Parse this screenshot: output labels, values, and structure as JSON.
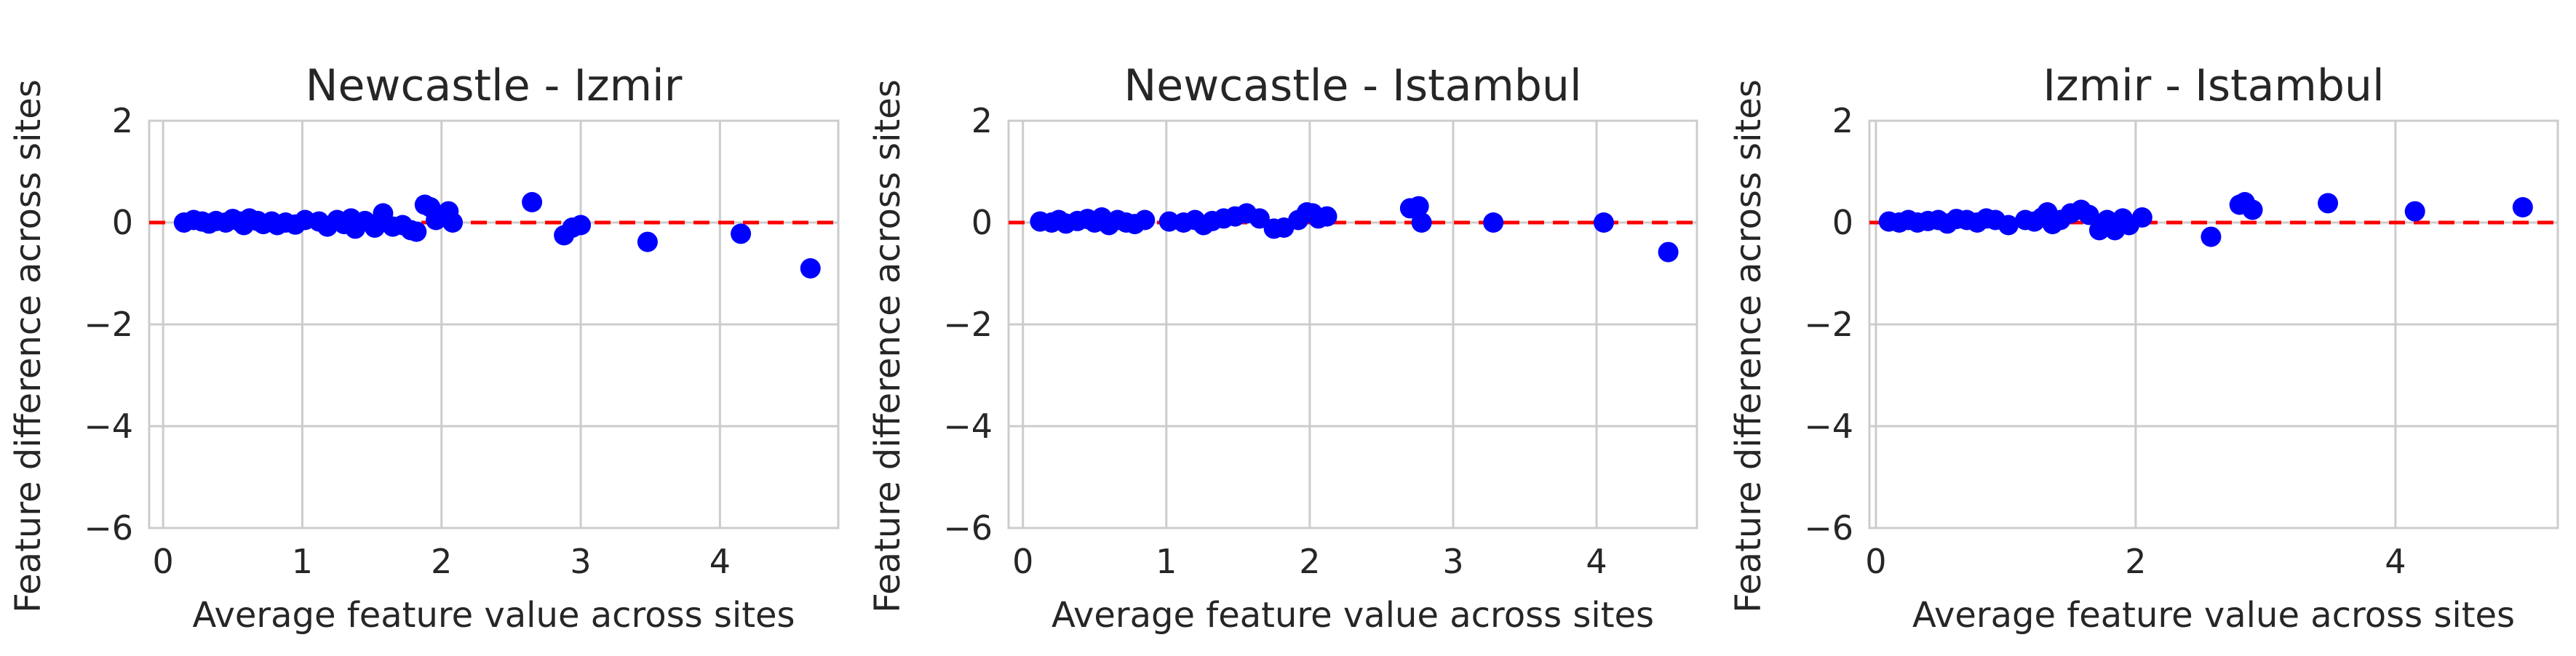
{
  "chart_data": [
    {
      "type": "scatter",
      "title": "Newcastle - Izmir",
      "xlabel": "Average feature value across sites",
      "ylabel": "Feature difference across sites",
      "xlim": [
        -0.1,
        4.85
      ],
      "ylim": [
        -6,
        2
      ],
      "xticks": [
        0,
        1,
        2,
        3,
        4
      ],
      "yticks": [
        -6,
        -4,
        -2,
        0,
        2
      ],
      "grid": true,
      "reference_line": {
        "y": 0,
        "style": "dashed",
        "color": "#ff0000"
      },
      "marker_color": "#0000ff",
      "points": [
        [
          0.15,
          0.0
        ],
        [
          0.22,
          0.05
        ],
        [
          0.28,
          0.02
        ],
        [
          0.33,
          -0.02
        ],
        [
          0.38,
          0.03
        ],
        [
          0.45,
          0.0
        ],
        [
          0.5,
          0.07
        ],
        [
          0.55,
          0.02
        ],
        [
          0.58,
          -0.05
        ],
        [
          0.62,
          0.08
        ],
        [
          0.68,
          0.03
        ],
        [
          0.72,
          -0.03
        ],
        [
          0.78,
          0.02
        ],
        [
          0.82,
          -0.05
        ],
        [
          0.88,
          0.0
        ],
        [
          0.95,
          -0.04
        ],
        [
          1.02,
          0.05
        ],
        [
          1.12,
          0.02
        ],
        [
          1.18,
          -0.08
        ],
        [
          1.25,
          0.05
        ],
        [
          1.3,
          -0.03
        ],
        [
          1.35,
          0.08
        ],
        [
          1.38,
          -0.12
        ],
        [
          1.45,
          0.03
        ],
        [
          1.52,
          -0.1
        ],
        [
          1.58,
          0.18
        ],
        [
          1.65,
          -0.08
        ],
        [
          1.72,
          -0.05
        ],
        [
          1.78,
          -0.15
        ],
        [
          1.82,
          -0.18
        ],
        [
          1.88,
          0.35
        ],
        [
          1.92,
          0.3
        ],
        [
          1.96,
          0.05
        ],
        [
          2.05,
          0.22
        ],
        [
          2.08,
          0.0
        ],
        [
          2.65,
          0.4
        ],
        [
          2.88,
          -0.25
        ],
        [
          2.94,
          -0.1
        ],
        [
          3.0,
          -0.05
        ],
        [
          3.48,
          -0.38
        ],
        [
          4.15,
          -0.22
        ],
        [
          4.65,
          -0.9
        ]
      ]
    },
    {
      "type": "scatter",
      "title": "Newcastle - Istambul",
      "xlabel": "Average feature value across sites",
      "ylabel": "Feature difference across sites",
      "xlim": [
        -0.1,
        4.7
      ],
      "ylim": [
        -6,
        2
      ],
      "xticks": [
        0,
        1,
        2,
        3,
        4
      ],
      "yticks": [
        -6,
        -4,
        -2,
        0,
        2
      ],
      "grid": true,
      "reference_line": {
        "y": 0,
        "style": "dashed",
        "color": "#ff0000"
      },
      "marker_color": "#0000ff",
      "points": [
        [
          0.12,
          0.02
        ],
        [
          0.2,
          0.0
        ],
        [
          0.25,
          0.05
        ],
        [
          0.3,
          -0.02
        ],
        [
          0.38,
          0.03
        ],
        [
          0.45,
          0.07
        ],
        [
          0.5,
          0.0
        ],
        [
          0.55,
          0.1
        ],
        [
          0.6,
          -0.05
        ],
        [
          0.66,
          0.05
        ],
        [
          0.72,
          0.0
        ],
        [
          0.78,
          -0.03
        ],
        [
          0.85,
          0.05
        ],
        [
          1.02,
          0.02
        ],
        [
          1.12,
          0.0
        ],
        [
          1.2,
          0.05
        ],
        [
          1.26,
          -0.05
        ],
        [
          1.32,
          0.03
        ],
        [
          1.4,
          0.08
        ],
        [
          1.48,
          0.12
        ],
        [
          1.56,
          0.18
        ],
        [
          1.65,
          0.08
        ],
        [
          1.75,
          -0.12
        ],
        [
          1.82,
          -0.1
        ],
        [
          1.92,
          0.05
        ],
        [
          1.98,
          0.2
        ],
        [
          2.02,
          0.18
        ],
        [
          2.06,
          0.08
        ],
        [
          2.12,
          0.12
        ],
        [
          2.7,
          0.28
        ],
        [
          2.76,
          0.32
        ],
        [
          2.78,
          0.0
        ],
        [
          3.28,
          0.0
        ],
        [
          4.05,
          0.0
        ],
        [
          4.5,
          -0.58
        ]
      ]
    },
    {
      "type": "scatter",
      "title": "Izmir - Istambul",
      "xlabel": "Average feature value across sites",
      "ylabel": "Feature difference across sites",
      "xlim": [
        -0.05,
        5.25
      ],
      "ylim": [
        -6,
        2
      ],
      "xticks": [
        0,
        2,
        4
      ],
      "yticks": [
        -6,
        -4,
        -2,
        0,
        2
      ],
      "grid": true,
      "reference_line": {
        "y": 0,
        "style": "dashed",
        "color": "#ff0000"
      },
      "marker_color": "#0000ff",
      "points": [
        [
          0.1,
          0.02
        ],
        [
          0.18,
          0.0
        ],
        [
          0.25,
          0.05
        ],
        [
          0.32,
          0.0
        ],
        [
          0.4,
          0.03
        ],
        [
          0.48,
          0.05
        ],
        [
          0.55,
          -0.02
        ],
        [
          0.62,
          0.07
        ],
        [
          0.7,
          0.05
        ],
        [
          0.78,
          0.0
        ],
        [
          0.85,
          0.08
        ],
        [
          0.92,
          0.05
        ],
        [
          1.02,
          -0.05
        ],
        [
          1.15,
          0.05
        ],
        [
          1.22,
          0.02
        ],
        [
          1.28,
          0.1
        ],
        [
          1.32,
          0.2
        ],
        [
          1.36,
          -0.03
        ],
        [
          1.42,
          0.05
        ],
        [
          1.5,
          0.18
        ],
        [
          1.58,
          0.25
        ],
        [
          1.64,
          0.15
        ],
        [
          1.72,
          -0.15
        ],
        [
          1.78,
          0.05
        ],
        [
          1.84,
          -0.15
        ],
        [
          1.9,
          0.08
        ],
        [
          1.95,
          -0.05
        ],
        [
          2.05,
          0.1
        ],
        [
          2.58,
          -0.28
        ],
        [
          2.8,
          0.35
        ],
        [
          2.84,
          0.4
        ],
        [
          2.9,
          0.25
        ],
        [
          3.48,
          0.38
        ],
        [
          4.15,
          0.22
        ],
        [
          4.98,
          0.3
        ]
      ]
    }
  ]
}
